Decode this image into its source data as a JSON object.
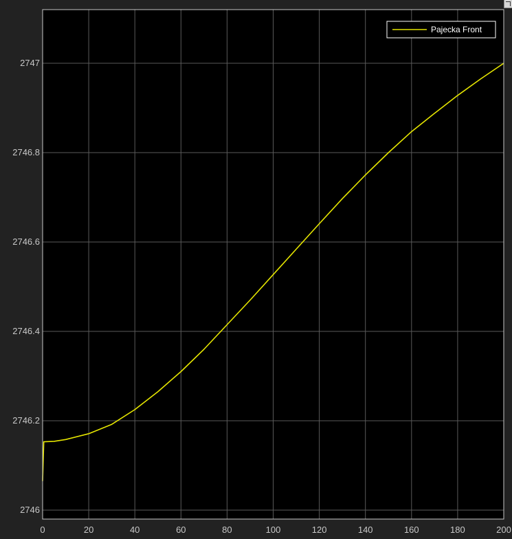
{
  "chart_data": {
    "type": "line",
    "title": "",
    "xlabel": "",
    "ylabel": "",
    "xlim": [
      0,
      200
    ],
    "ylim": [
      2745.98,
      2747.12
    ],
    "xticks": [
      0,
      20,
      40,
      60,
      80,
      100,
      120,
      140,
      160,
      180,
      200
    ],
    "yticks": [
      2746,
      2746.2,
      2746.4,
      2746.6,
      2746.8,
      2747
    ],
    "ytick_labels": [
      "2746",
      "2746.2",
      "2746.4",
      "2746.6",
      "2746.8",
      "2747"
    ],
    "grid": true,
    "legend_position": "top-right",
    "colors": {
      "background": "#000000",
      "grid": "#5a5a5a",
      "axis": "#c8c8c8",
      "series": "#e6e600"
    },
    "series": [
      {
        "name": "Pajecka Front",
        "x": [
          0,
          0.5,
          5,
          10,
          20,
          30,
          40,
          50,
          60,
          70,
          80,
          90,
          100,
          110,
          120,
          130,
          140,
          150,
          160,
          170,
          180,
          190,
          200
        ],
        "y": [
          2746.065,
          2746.153,
          2746.154,
          2746.158,
          2746.171,
          2746.192,
          2746.225,
          2746.265,
          2746.31,
          2746.36,
          2746.415,
          2746.47,
          2746.527,
          2746.584,
          2746.641,
          2746.697,
          2746.75,
          2746.8,
          2746.847,
          2746.888,
          2746.928,
          2746.965,
          2747.0
        ]
      }
    ]
  }
}
